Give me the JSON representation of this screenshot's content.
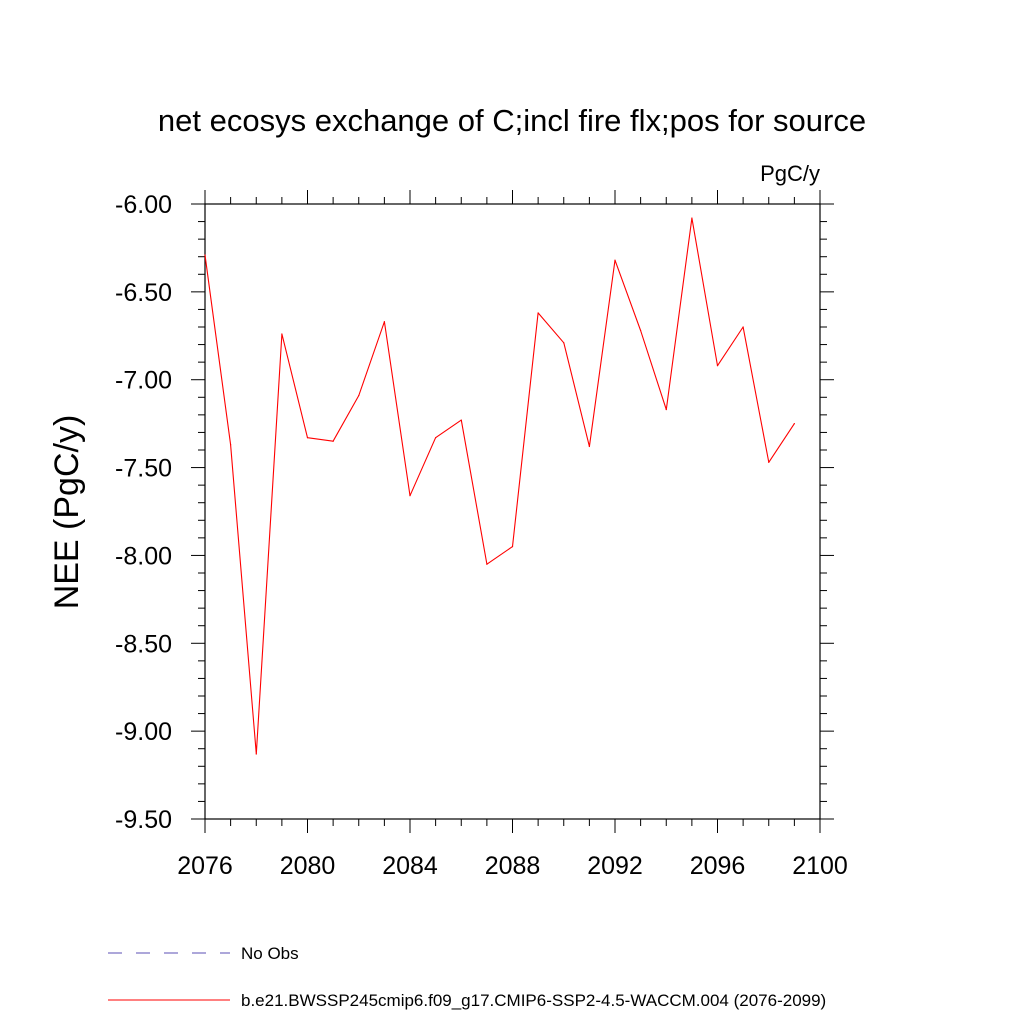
{
  "chart_data": {
    "type": "line",
    "title": "net ecosys exchange of C;incl fire flx;pos for source",
    "units": "PgC/y",
    "ylabel": "NEE  (PgC/y)",
    "xlabel": "",
    "xlim": [
      2076,
      2100
    ],
    "ylim": [
      -9.5,
      -6.0
    ],
    "x_ticks": [
      2076,
      2080,
      2084,
      2088,
      2092,
      2096,
      2100
    ],
    "x_tick_labels": [
      "2076",
      "2080",
      "2084",
      "2088",
      "2092",
      "2096",
      "2100"
    ],
    "y_ticks": [
      -6.0,
      -6.5,
      -7.0,
      -7.5,
      -8.0,
      -8.5,
      -9.0,
      -9.5
    ],
    "y_tick_labels": [
      "-6.00",
      "-6.50",
      "-7.00",
      "-7.50",
      "-8.00",
      "-8.50",
      "-9.00",
      "-9.50"
    ],
    "x": [
      2076,
      2077,
      2078,
      2079,
      2080,
      2081,
      2082,
      2083,
      2084,
      2085,
      2086,
      2087,
      2088,
      2089,
      2090,
      2091,
      2092,
      2093,
      2094,
      2095,
      2096,
      2097,
      2098,
      2099
    ],
    "series": [
      {
        "name": "b.e21.BWSSP245cmip6.f09_g17.CMIP6-SSP2-4.5-WACCM.004 (2076-2099)",
        "color": "#ff0000",
        "values": [
          -6.29,
          -7.37,
          -9.13,
          -6.74,
          -7.33,
          -7.35,
          -7.09,
          -6.67,
          -7.66,
          -7.33,
          -7.23,
          -8.05,
          -7.95,
          -6.62,
          -6.79,
          -7.38,
          -6.32,
          -6.72,
          -7.17,
          -6.08,
          -6.92,
          -6.7,
          -7.47,
          -7.25
        ]
      }
    ],
    "legend": [
      {
        "label": "No Obs",
        "color": "#5b4fb5",
        "style": "dashed"
      },
      {
        "label": "b.e21.BWSSP245cmip6.f09_g17.CMIP6-SSP2-4.5-WACCM.004 (2076-2099)",
        "color": "#ff0000",
        "style": "solid"
      }
    ],
    "legend_position": "bottom-left",
    "grid": false
  }
}
